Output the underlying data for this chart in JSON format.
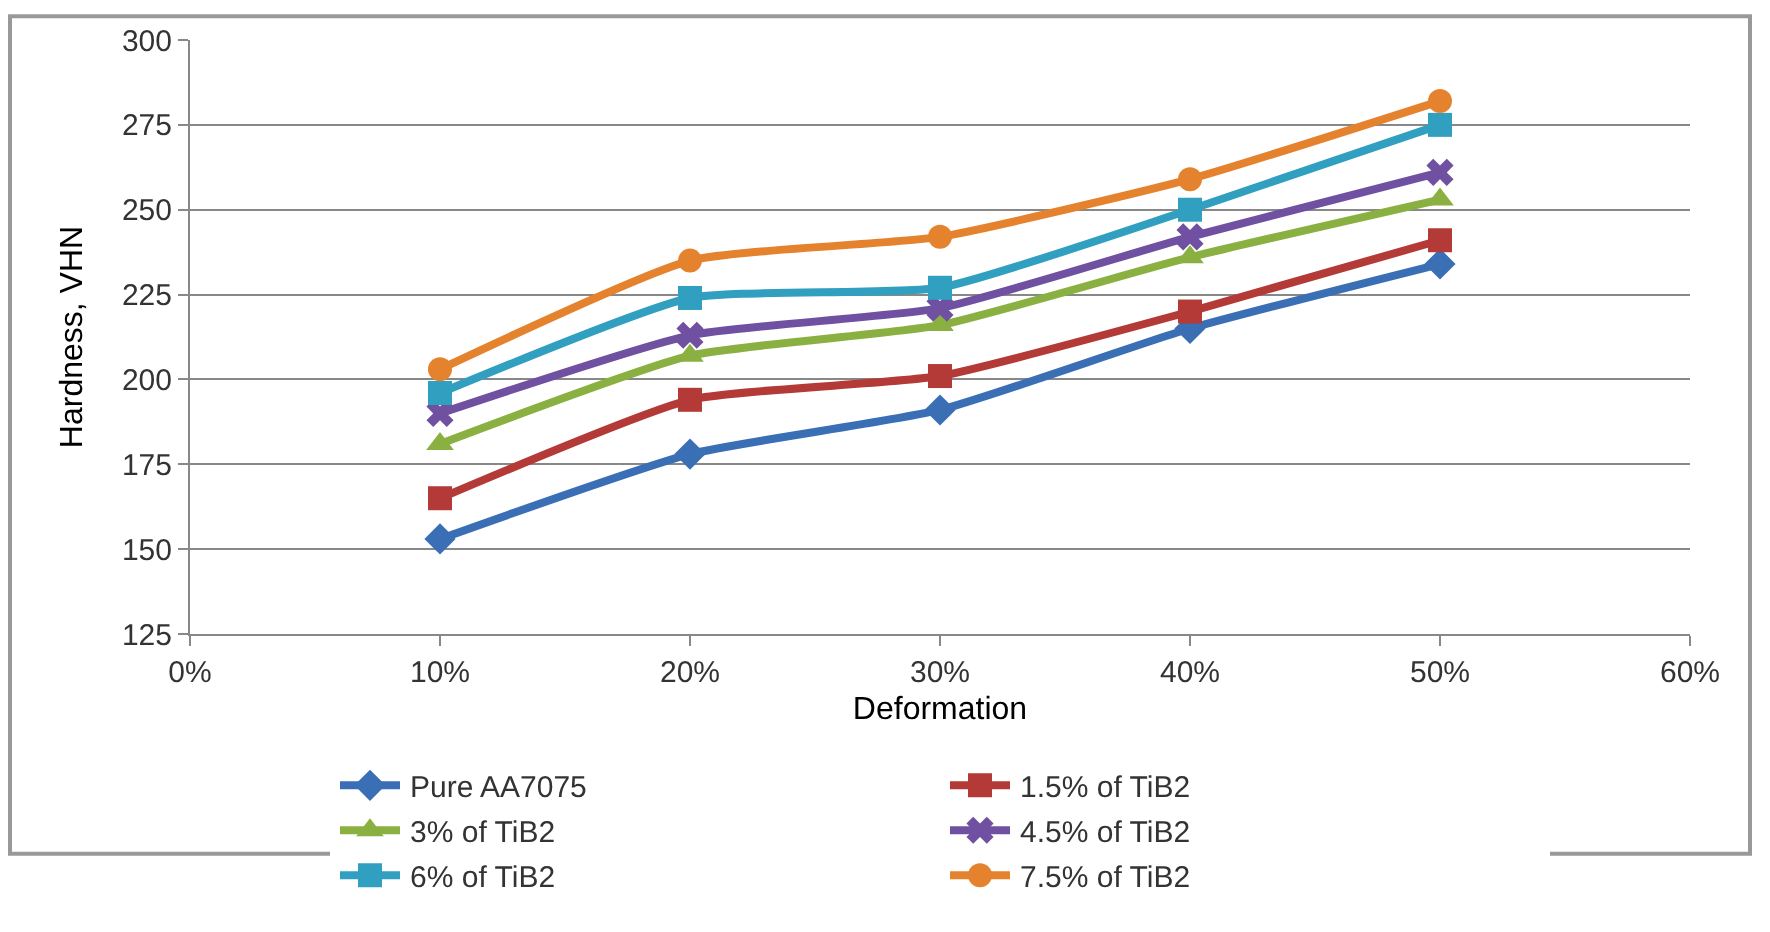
{
  "chart_data": {
    "type": "line",
    "xlabel": "Deformation",
    "ylabel": "Hardness, VHN",
    "x": [
      10,
      20,
      30,
      40,
      50
    ],
    "xlim": [
      0,
      60
    ],
    "xticks": [
      {
        "value": 0,
        "label": "0%"
      },
      {
        "value": 10,
        "label": "10%"
      },
      {
        "value": 20,
        "label": "20%"
      },
      {
        "value": 30,
        "label": "30%"
      },
      {
        "value": 40,
        "label": "40%"
      },
      {
        "value": 50,
        "label": "50%"
      },
      {
        "value": 60,
        "label": "60%"
      }
    ],
    "ylim": [
      125,
      300
    ],
    "yticks": [
      125,
      150,
      175,
      200,
      225,
      250,
      275,
      300
    ],
    "grid": "y",
    "legend": "bottom",
    "series": [
      {
        "name": "Pure AA7075",
        "color": "#3a6fb5",
        "marker": "diamond",
        "values": [
          153,
          178,
          191,
          215,
          234
        ]
      },
      {
        "name": "1.5% of TiB2",
        "color": "#b33a36",
        "marker": "square",
        "values": [
          165,
          194,
          201,
          220,
          241
        ]
      },
      {
        "name": "3% of TiB2",
        "color": "#8bb042",
        "marker": "triangle",
        "values": [
          181,
          207,
          216,
          236,
          253
        ]
      },
      {
        "name": "4.5% of TiB2",
        "color": "#7050a0",
        "marker": "cross",
        "values": [
          190,
          213,
          221,
          242,
          261
        ]
      },
      {
        "name": "6% of TiB2",
        "color": "#31a0c0",
        "marker": "square",
        "values": [
          196,
          224,
          227,
          250,
          275
        ]
      },
      {
        "name": "7.5% of TiB2",
        "color": "#e5822e",
        "marker": "circle",
        "values": [
          203,
          235,
          242,
          259,
          282
        ]
      }
    ]
  }
}
